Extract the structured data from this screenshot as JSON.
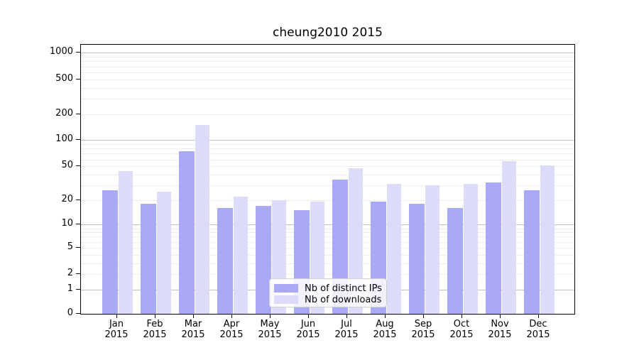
{
  "title": "cheung2010 2015",
  "colors": {
    "background": "#ffffff",
    "axis": "#000000",
    "grid_major": "#c0c0c0",
    "grid_minor": "#ededed",
    "ips_bar": "#a9a9f5",
    "downloads_bar": "#dcdcfa",
    "legend_border": "#d0d0d0"
  },
  "chart_data": {
    "type": "bar",
    "title": "cheung2010 2015",
    "categories": [
      "Jan 2015",
      "Feb 2015",
      "Mar 2015",
      "Apr 2015",
      "May 2015",
      "Jun 2015",
      "Jul 2015",
      "Aug 2015",
      "Sep 2015",
      "Oct 2015",
      "Nov 2015",
      "Dec 2015"
    ],
    "series": [
      {
        "name": "Nb of distinct IPs",
        "color": "#a9a9f5",
        "values": [
          26,
          18,
          75,
          16,
          17,
          15,
          35,
          19,
          18,
          16,
          32,
          26
        ]
      },
      {
        "name": "Nb of downloads",
        "color": "#dcdcfa",
        "values": [
          44,
          25,
          150,
          22,
          20,
          19,
          47,
          31,
          30,
          31,
          57,
          51
        ]
      }
    ],
    "xlabel": "",
    "ylabel": "",
    "yscale": "log1p",
    "ylim": [
      0,
      1270
    ],
    "yticks": [
      0,
      1,
      2,
      5,
      10,
      20,
      50,
      100,
      200,
      500,
      1000
    ],
    "grid": true,
    "legend_position": "lower center"
  }
}
